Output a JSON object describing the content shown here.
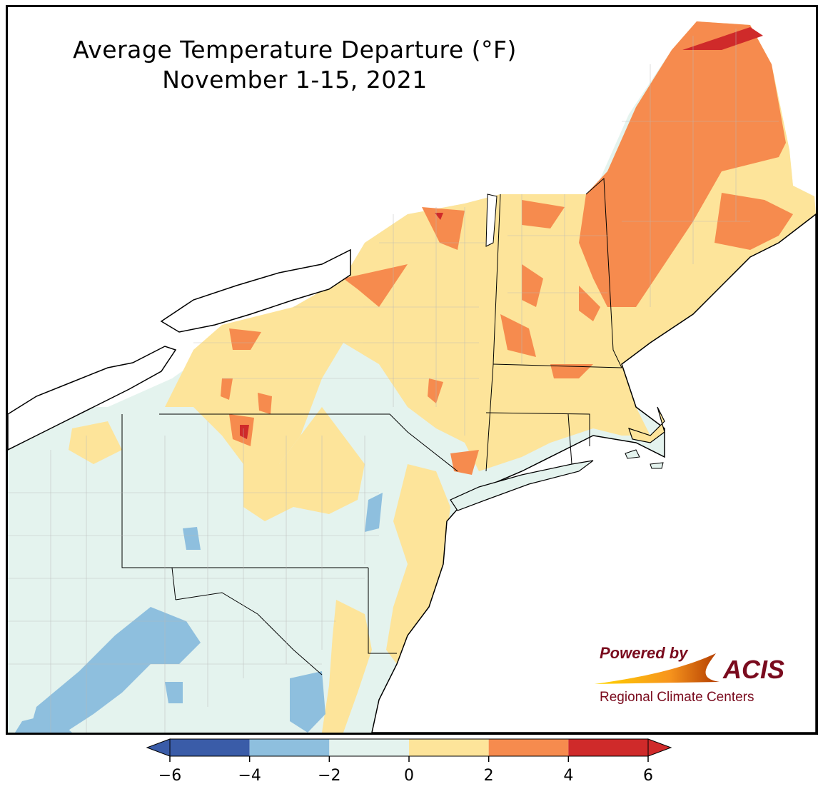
{
  "map": {
    "title": "Average Temperature Departure (°F)",
    "subtitle": "November 1-15, 2021",
    "region": "Northeast United States",
    "legend": {
      "min": -6,
      "max": 6,
      "bins": [
        {
          "from": -6,
          "to": -4,
          "color": "#3a5ca8"
        },
        {
          "from": -4,
          "to": -2,
          "color": "#8ebfde"
        },
        {
          "from": -2,
          "to": 0,
          "color": "#e4f3ee"
        },
        {
          "from": 0,
          "to": 2,
          "color": "#fde49a"
        },
        {
          "from": 2,
          "to": 4,
          "color": "#f68b4e"
        },
        {
          "from": 4,
          "to": 6,
          "color": "#cf2a2a"
        }
      ],
      "tick_labels": [
        "−6",
        "−4",
        "−2",
        "0",
        "2",
        "4",
        "6"
      ],
      "extend": "both"
    },
    "colors": {
      "below_4_6": "#3a5ca8",
      "below_2_4": "#8ebfde",
      "near_normal_below": "#e4f3ee",
      "above_0_2": "#fde49a",
      "above_2_4": "#f68b4e",
      "above_4_6": "#cf2a2a",
      "water": "#ffffff",
      "borders": "#000000",
      "county_lines": "#b8b8b8"
    }
  },
  "logo": {
    "powered_by": "Powered by",
    "brand": "ACIS",
    "org": "Regional Climate Centers"
  }
}
